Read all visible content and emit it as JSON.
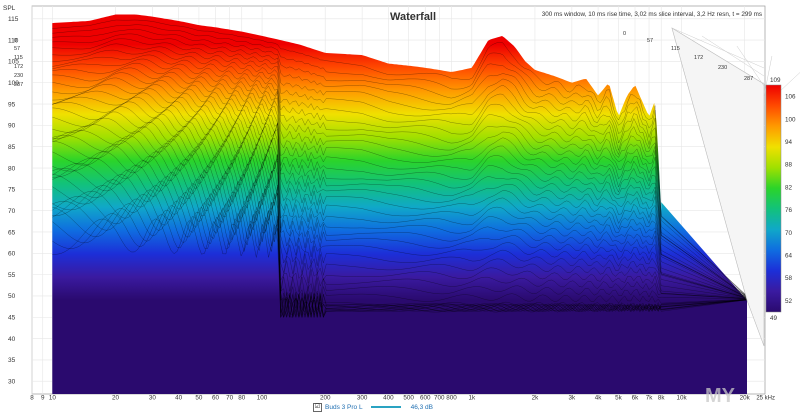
{
  "chart_data": {
    "type": "area",
    "title": "Waterfall",
    "info": "300 ms window, 10 ms rise time, 3,02 ms slice interval, 3,2 Hz resn, t = 299 ms",
    "ylabel": "SPL",
    "y_ticks": [
      115,
      110,
      105,
      100,
      95,
      90,
      85,
      80,
      75,
      70,
      65,
      60,
      55,
      50,
      45,
      40,
      35,
      30
    ],
    "ylim": [
      27,
      118
    ],
    "x_ticks": [
      {
        "f": 8,
        "label": "8"
      },
      {
        "f": 9,
        "label": "9"
      },
      {
        "f": 10,
        "label": "10"
      },
      {
        "f": 20,
        "label": "20"
      },
      {
        "f": 30,
        "label": "30"
      },
      {
        "f": 40,
        "label": "40"
      },
      {
        "f": 50,
        "label": "50"
      },
      {
        "f": 60,
        "label": "60"
      },
      {
        "f": 70,
        "label": "70"
      },
      {
        "f": 80,
        "label": "80"
      },
      {
        "f": 100,
        "label": "100"
      },
      {
        "f": 200,
        "label": "200"
      },
      {
        "f": 300,
        "label": "300"
      },
      {
        "f": 400,
        "label": "400"
      },
      {
        "f": 500,
        "label": "500"
      },
      {
        "f": 600,
        "label": "600"
      },
      {
        "f": 700,
        "label": "700"
      },
      {
        "f": 800,
        "label": "800"
      },
      {
        "f": 1000,
        "label": "1k"
      },
      {
        "f": 2000,
        "label": "2k"
      },
      {
        "f": 3000,
        "label": "3k"
      },
      {
        "f": 4000,
        "label": "4k"
      },
      {
        "f": 5000,
        "label": "5k"
      },
      {
        "f": 6000,
        "label": "6k"
      },
      {
        "f": 7000,
        "label": "7k"
      },
      {
        "f": 8000,
        "label": "8k"
      },
      {
        "f": 10000,
        "label": "10k"
      },
      {
        "f": 20000,
        "label": "20k"
      }
    ],
    "xlim": [
      8,
      25000
    ],
    "xunit": "25 kHz",
    "time_labels_left": [
      "0",
      "57",
      "115",
      "172",
      "230",
      "287"
    ],
    "time_labels_right": [
      "0",
      "57",
      "115",
      "172",
      "230",
      "287"
    ],
    "front_slice": {
      "freq": [
        10,
        15,
        20,
        25,
        30,
        40,
        50,
        60,
        80,
        100,
        150,
        200,
        300,
        400,
        500,
        600,
        700,
        800,
        900,
        1000,
        1200,
        1400,
        1600,
        1800,
        2000,
        2500,
        3000,
        3500,
        4000,
        4500,
        5000,
        5500,
        6000,
        7000,
        7500,
        8000
      ],
      "spl": [
        114,
        114.5,
        116,
        116,
        115.5,
        114.5,
        113.5,
        113,
        112,
        111,
        109,
        107,
        106.5,
        104.5,
        104,
        103.5,
        103,
        102.5,
        103,
        103.5,
        110,
        111,
        108.5,
        105,
        103,
        101.5,
        100,
        101,
        97,
        100,
        92,
        97,
        99.5,
        92,
        96,
        70
      ]
    },
    "floor_db": 49,
    "colorbar": {
      "min": 49,
      "max": 109,
      "ticks": [
        106,
        100,
        94,
        88,
        82,
        76,
        70,
        64,
        58,
        52
      ],
      "min_label": "49",
      "max_label": "109",
      "stops": [
        "#2a0a6e",
        "#3a1aa0",
        "#1c2fd8",
        "#0f6de0",
        "#10a8c8",
        "#12c27a",
        "#2bd42a",
        "#a0e000",
        "#f0e000",
        "#ff9a00",
        "#ff4a00",
        "#ee0000"
      ]
    },
    "legend": {
      "series_name": "Buds 3 Pro L",
      "checked": "☑",
      "value": "46,3 dB"
    },
    "watermark": "MY",
    "grid": true
  }
}
